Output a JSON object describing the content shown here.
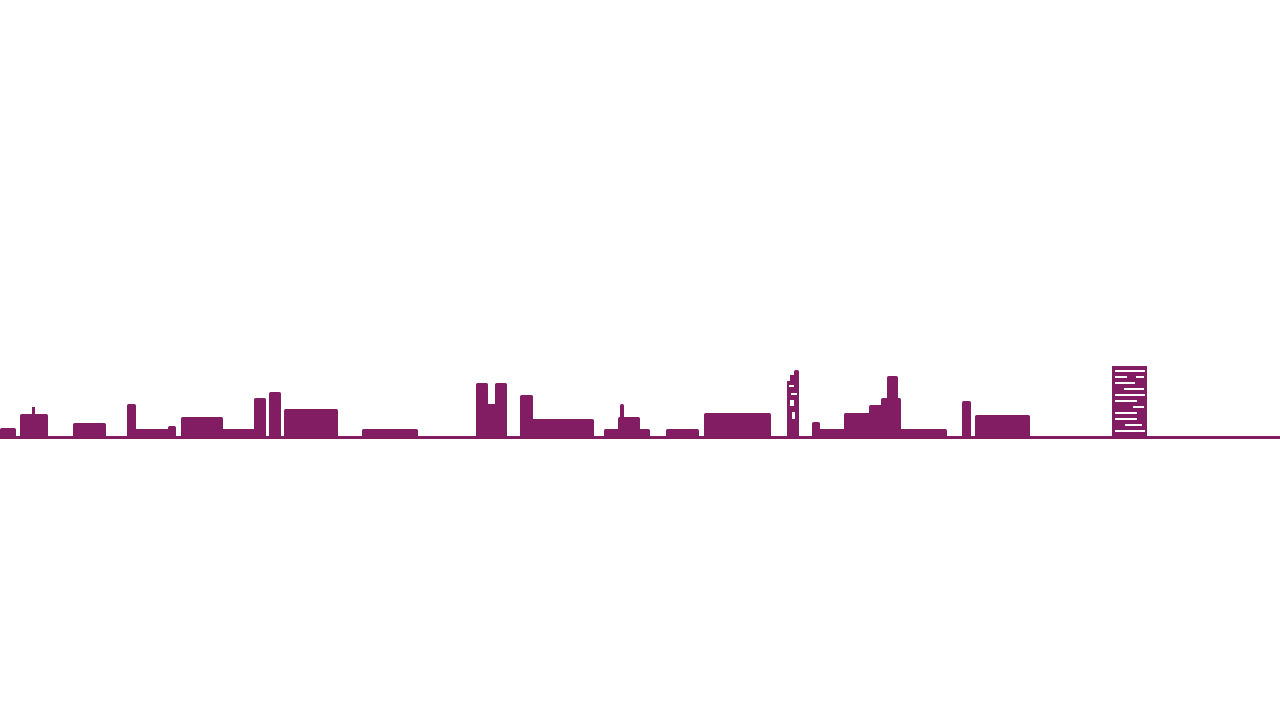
{
  "colors": {
    "background": "#ffffff",
    "skyline": "#821d63",
    "window_light": "#ffffff"
  },
  "icons": {
    "skyline": "city-skyline-icon",
    "ground": "ground-line-icon",
    "tower": "office-tower-icon"
  }
}
